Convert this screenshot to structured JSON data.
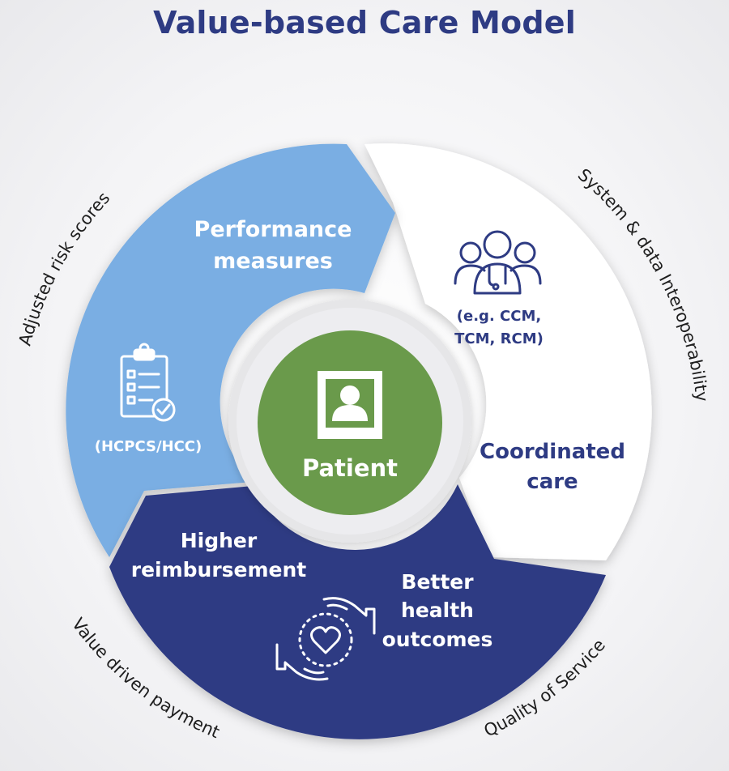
{
  "title": "Value-based Care Model",
  "center": {
    "label": "Patient",
    "icon": "patient-portrait-icon"
  },
  "segments": {
    "performance": {
      "title_line1": "Performance",
      "title_line2": "measures",
      "sub": "(HCPCS/HCC)",
      "icon": "clipboard-checklist-icon"
    },
    "coordinated": {
      "title_line1": "Coordinated",
      "title_line2": "care",
      "sub_line1": "(e.g. CCM,",
      "sub_line2": "TCM, RCM)",
      "icon": "care-team-icon"
    },
    "outcomes": {
      "left_line1": "Higher",
      "left_line2": "reimbursement",
      "right_line1": "Better",
      "right_line2": "health",
      "right_line3": "outcomes",
      "icon": "caring-hands-heart-icon"
    }
  },
  "outer_labels": {
    "top_left": "Adjusted risk scores",
    "top_right": "System & data Interoperability",
    "bottom_left": "Value driven payment",
    "bottom_right": "Quality of Service"
  },
  "colors": {
    "title": "#2e3b83",
    "blue_light": "#7aaee3",
    "navy": "#2e3b83",
    "white_segment": "#ffffff",
    "center_green": "#6a9a4b"
  }
}
